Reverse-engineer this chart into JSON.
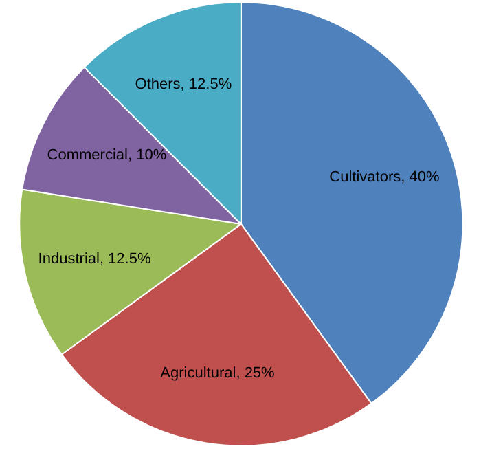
{
  "chart_data": {
    "type": "pie",
    "categories": [
      "Cultivators",
      "Agricultural",
      "Industrial",
      "Commercial",
      "Others"
    ],
    "values": [
      40,
      25,
      12.5,
      10,
      12.5
    ],
    "value_labels": [
      "40%",
      "25%",
      "12.5%",
      "10%",
      "12.5%"
    ],
    "colors": [
      "#4f81bd",
      "#c0504d",
      "#9bbb59",
      "#8064a2",
      "#4bacc6"
    ],
    "legend": false
  }
}
